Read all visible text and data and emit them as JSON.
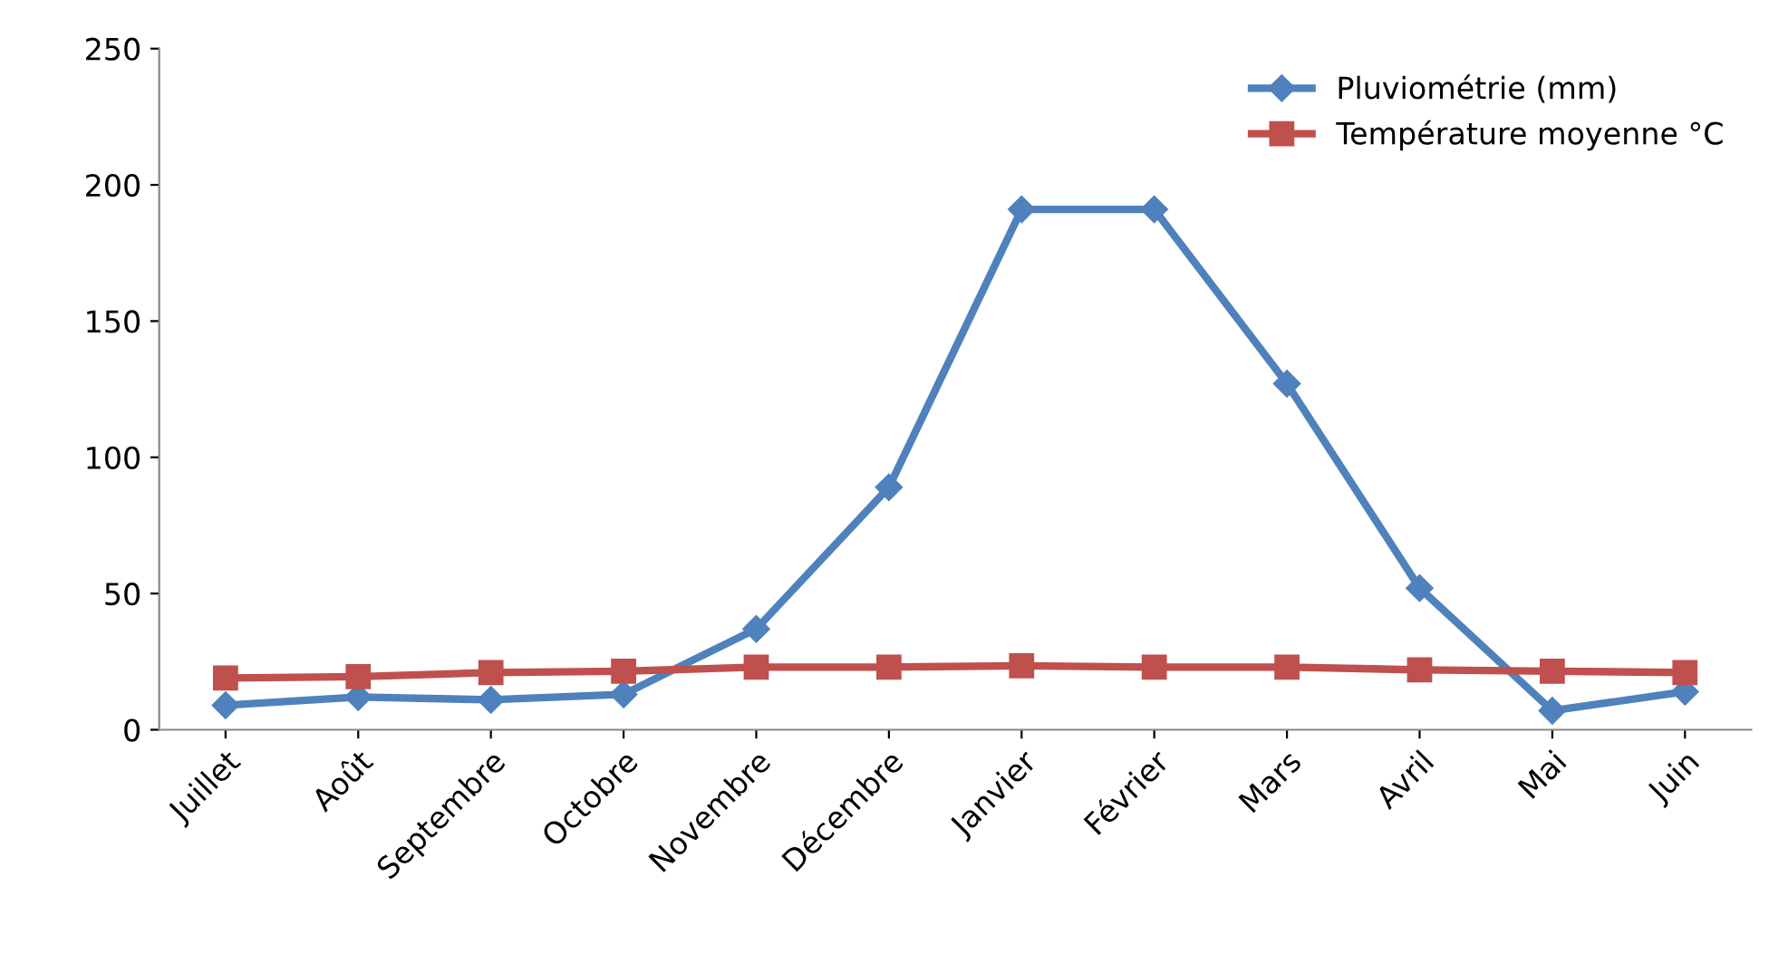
{
  "chart_data": {
    "type": "line",
    "categories": [
      "Juillet",
      "Août",
      "Septembre",
      "Octobre",
      "Novembre",
      "Décembre",
      "Janvier",
      "Février",
      "Mars",
      "Avril",
      "Mai",
      "Juin"
    ],
    "series": [
      {
        "name": "Pluviométrie (mm)",
        "color": "#4f81bd",
        "marker": "diamond",
        "values": [
          9,
          12,
          11,
          13,
          37,
          89,
          191,
          191,
          127,
          52,
          7,
          14
        ]
      },
      {
        "name": "Température moyenne °C",
        "color": "#c0504d",
        "marker": "square",
        "values": [
          19,
          19.5,
          21,
          21.5,
          23,
          23,
          23.5,
          23,
          23,
          22,
          21.5,
          21
        ]
      }
    ],
    "ylim": [
      0,
      250
    ],
    "yticks": [
      0,
      50,
      100,
      150,
      200,
      250
    ],
    "grid": false,
    "legend": "top right",
    "line_style": "solid"
  }
}
